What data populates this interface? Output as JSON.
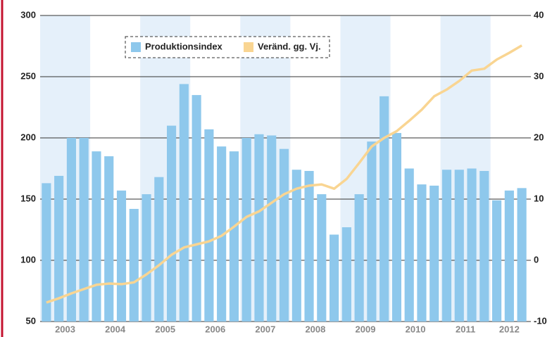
{
  "chart_data": {
    "type": "bar-line",
    "years": [
      "2003",
      "2004",
      "2005",
      "2006",
      "2007",
      "2008",
      "2009",
      "2010",
      "2011",
      "2012"
    ],
    "series": [
      {
        "name": "Produktionsindex",
        "color": "#8ec8ec",
        "axis": "y",
        "values": [
          163,
          169,
          200,
          200,
          189,
          185,
          157,
          142,
          154,
          168,
          210,
          244,
          235,
          207,
          193,
          189,
          200,
          203,
          202,
          191,
          174,
          173,
          154,
          121,
          127,
          154,
          197,
          234,
          204,
          175,
          162,
          161,
          174,
          174,
          175,
          173,
          149,
          157,
          159
        ]
      },
      {
        "name": "Veränd. gg. Vj.",
        "color": "#f9d592",
        "axis": "y2",
        "values": [
          -6.9,
          -6.2,
          -5.4,
          -4.7,
          -4.0,
          -3.8,
          -3.9,
          -3.6,
          -2.3,
          -0.8,
          0.9,
          2.1,
          2.6,
          3.1,
          4.0,
          5.5,
          7.1,
          8.0,
          9.4,
          10.8,
          11.7,
          12.2,
          12.4,
          11.7,
          13.3,
          15.9,
          18.6,
          20.0,
          21.1,
          22.8,
          24.6,
          26.8,
          27.9,
          29.3,
          31.0,
          31.3,
          32.8,
          33.9,
          35.1
        ]
      }
    ],
    "ylim": [
      50,
      300
    ],
    "yticks": [
      50,
      100,
      150,
      200,
      250,
      300
    ],
    "y2lim": [
      -10,
      40
    ],
    "y2ticks": [
      -10,
      0,
      10,
      20,
      30,
      40
    ],
    "band_color": "#e5f0fa",
    "grid": true
  }
}
